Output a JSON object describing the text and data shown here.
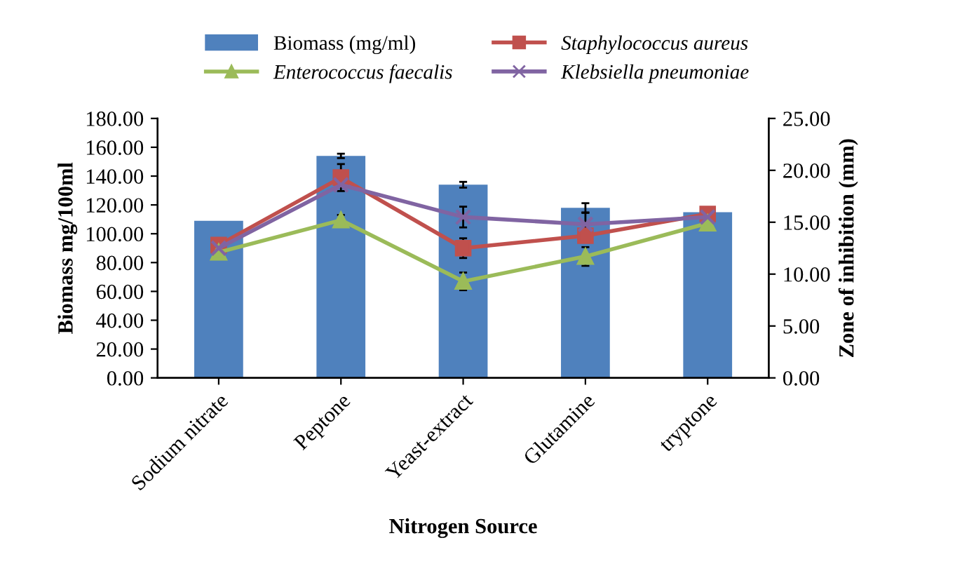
{
  "chart_data": {
    "type": "bar",
    "xlabel": "Nitrogen Source",
    "ylabel": "Biomass mg/100ml",
    "y2label": "Zone of inhibition (mm)",
    "categories": [
      "Sodium nitrate",
      "Peptone",
      "Yeast-extract",
      "Glutamine",
      "tryptone"
    ],
    "series": [
      {
        "name": "Biomass (mg/ml)",
        "color": "#4f81bd",
        "values": [
          109,
          154,
          134,
          118,
          115
        ],
        "errors": [
          null,
          1.5,
          2,
          3.2,
          null
        ]
      },
      {
        "name": "Staphylococcus aureus",
        "type": "line",
        "axis": "y2",
        "marker": "square",
        "color": "#c0504d",
        "values": [
          12.8,
          19.3,
          12.5,
          13.7,
          15.8
        ],
        "errors": [
          null,
          1.3,
          0.95,
          0.6,
          null
        ]
      },
      {
        "name": "Enterococcus faecalis",
        "type": "line",
        "axis": "y2",
        "marker": "triangle",
        "color": "#9bbb59",
        "values": [
          12.1,
          15.2,
          9.3,
          11.7,
          14.9
        ],
        "errors": [
          null,
          0.5,
          0.85,
          0.9,
          null
        ]
      },
      {
        "name": "Klebsiella pneumoniae",
        "type": "line",
        "axis": "y2",
        "marker": "cross",
        "color": "#8064a2",
        "values": [
          12.5,
          18.6,
          15.5,
          14.8,
          15.5
        ],
        "errors": [
          null,
          null,
          1.0,
          1.1,
          null
        ]
      }
    ],
    "ylim": [
      0,
      180
    ],
    "yticks": [
      {
        "value": 0,
        "label": "0.00"
      },
      {
        "value": 20,
        "label": "20.00"
      },
      {
        "value": 40,
        "label": "40.00"
      },
      {
        "value": 60,
        "label": "60.00"
      },
      {
        "value": 80,
        "label": "80.00"
      },
      {
        "value": 100,
        "label": "100.00"
      },
      {
        "value": 120,
        "label": "120.00"
      },
      {
        "value": 140,
        "label": "140.00"
      },
      {
        "value": 160,
        "label": "160.00"
      },
      {
        "value": 180,
        "label": "180.00"
      }
    ],
    "y2lim": [
      0,
      25
    ],
    "y2ticks": [
      {
        "value": 0,
        "label": "0.00"
      },
      {
        "value": 5,
        "label": "5.00"
      },
      {
        "value": 10,
        "label": "10.00"
      },
      {
        "value": 15,
        "label": "15.00"
      },
      {
        "value": 20,
        "label": "20.00"
      },
      {
        "value": 25,
        "label": "25.00"
      }
    ],
    "legend": "top",
    "grid": false
  }
}
